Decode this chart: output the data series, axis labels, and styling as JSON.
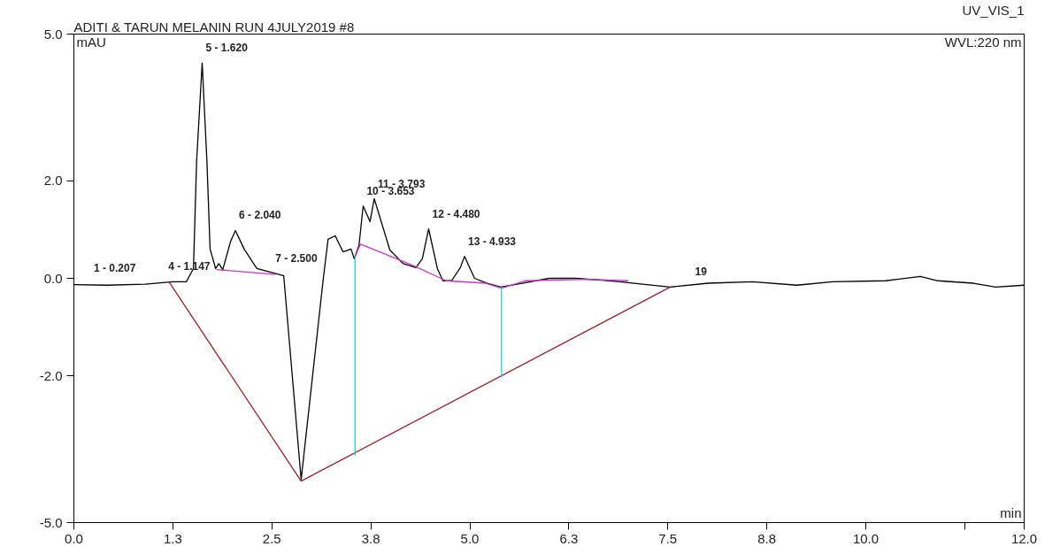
{
  "chart_data": {
    "type": "line",
    "title": "ADITI & TARUN MELANIN RUN 4JULY2019 #8",
    "xlabel": "min",
    "ylabel": "mAU",
    "xlim": [
      0,
      12
    ],
    "ylim": [
      -5,
      5
    ],
    "xticks": [
      {
        "value": 0,
        "label": "0.0"
      },
      {
        "value": 1.25,
        "label": "1.3"
      },
      {
        "value": 2.5,
        "label": "2.5"
      },
      {
        "value": 3.75,
        "label": "3.8"
      },
      {
        "value": 5,
        "label": "5.0"
      },
      {
        "value": 6.25,
        "label": "6.3"
      },
      {
        "value": 7.5,
        "label": "7.5"
      },
      {
        "value": 8.75,
        "label": "8.8"
      },
      {
        "value": 10,
        "label": "10.0"
      },
      {
        "value": 11.25,
        "label": null
      },
      {
        "value": 12,
        "label": "12.0"
      }
    ],
    "yticks": [
      {
        "value": -5,
        "label": "-5.0"
      },
      {
        "value": -2,
        "label": "-2.0"
      },
      {
        "value": 0,
        "label": "0.0"
      },
      {
        "value": 2,
        "label": "2.0"
      },
      {
        "value": 5,
        "label": "5.0"
      }
    ],
    "grid": false,
    "marker": "none",
    "line_style": "solid",
    "series": [
      {
        "color": "#000000",
        "x": [
          0,
          0.41,
          0.9,
          1.25,
          1.42,
          1.51,
          1.55,
          1.62,
          1.68,
          1.72,
          1.79,
          1.83,
          1.88,
          1.98,
          2.04,
          2.15,
          2.31,
          2.54,
          2.65,
          2.87,
          3.15,
          3.21,
          3.3,
          3.4,
          3.5,
          3.54,
          3.6,
          3.653,
          3.74,
          3.793,
          3.99,
          4.16,
          4.32,
          4.4,
          4.48,
          4.59,
          4.66,
          4.77,
          4.88,
          4.933,
          5.06,
          5.22,
          5.39,
          5.66,
          6.0,
          6.34,
          6.67,
          6.89,
          7.53,
          8.01,
          8.57,
          9.13,
          9.58,
          10.25,
          10.69,
          10.91,
          11.36,
          11.64,
          12
        ],
        "values": [
          -0.13,
          -0.14,
          -0.12,
          -0.07,
          -0.07,
          0.2,
          2.4,
          4.41,
          2.4,
          0.6,
          0.2,
          0.3,
          0.18,
          0.76,
          0.98,
          0.6,
          0.2,
          0.1,
          0.05,
          -4.12,
          0,
          0.8,
          0.87,
          0.54,
          0.6,
          0.4,
          0.67,
          1.48,
          1.16,
          1.63,
          0.58,
          0.3,
          0.22,
          0.4,
          1.01,
          0.2,
          -0.05,
          -0.05,
          0.22,
          0.45,
          0,
          -0.1,
          -0.18,
          -0.1,
          0,
          0,
          -0.04,
          -0.07,
          -0.18,
          -0.1,
          -0.07,
          -0.14,
          -0.07,
          -0.05,
          0.04,
          -0.05,
          -0.1,
          -0.18,
          -0.14
        ]
      },
      {
        "color": "#a0202a",
        "x": [
          1.2,
          2.87,
          7.53
        ],
        "values": [
          -0.07,
          -4.15,
          -0.18
        ]
      },
      {
        "color": "#cc33cc",
        "x": [
          1.8,
          2.55,
          null,
          3.55,
          3.62,
          4.3,
          4.7,
          5.2,
          5.4,
          5.7,
          6.5,
          7.0
        ],
        "values": [
          0.18,
          0.08,
          null,
          0.45,
          0.7,
          0.25,
          -0.05,
          -0.1,
          -0.2,
          -0.05,
          -0.02,
          -0.05
        ]
      },
      {
        "color": "#33cccc",
        "x": [
          3.55,
          3.55
        ],
        "values": [
          0.45,
          -3.63
        ]
      },
      {
        "color": "#33cccc",
        "x": [
          5.4,
          5.4
        ],
        "values": [
          -0.18,
          -2.03
        ]
      }
    ],
    "annotations": [
      "UV_VIS_1",
      "WVL:220 nm",
      {
        "text": "1 - 0.207",
        "x": 0.207,
        "y": -0.1
      },
      {
        "text": "4 - 1.147",
        "x": 1.147,
        "y": -0.07
      },
      {
        "text": "5 - 1.620",
        "x": 1.62,
        "y": 4.41
      },
      {
        "text": "6 - 2.040",
        "x": 2.04,
        "y": 0.98
      },
      {
        "text": "7 - 2.500",
        "x": 2.5,
        "y": 0.1
      },
      {
        "text": "10 - 3.653",
        "x": 3.653,
        "y": 1.48
      },
      {
        "text": "11 - 3.793",
        "x": 3.793,
        "y": 1.63
      },
      {
        "text": "12 - 4.480",
        "x": 4.48,
        "y": 1.01
      },
      {
        "text": "13 - 4.933",
        "x": 4.933,
        "y": 0.45
      },
      {
        "text": "19",
        "x": 7.8,
        "y": -0.12
      }
    ]
  }
}
